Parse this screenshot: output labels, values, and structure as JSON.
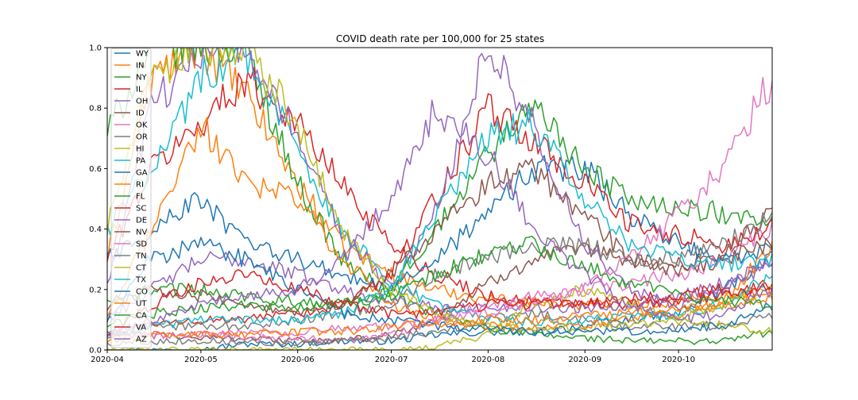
{
  "chart_data": {
    "type": "line",
    "title": "COVID death rate per 100,000 for 25 states",
    "xlabel": "",
    "ylabel": "",
    "x_range": [
      "2020-04-01",
      "2020-10-31"
    ],
    "x_ticks": [
      "2020-04",
      "2020-05",
      "2020-06",
      "2020-07",
      "2020-08",
      "2020-09",
      "2020-10"
    ],
    "x_tick_dates": [
      "2020-04-01",
      "2020-05-01",
      "2020-06-01",
      "2020-07-01",
      "2020-08-01",
      "2020-09-01",
      "2020-10-01"
    ],
    "ylim": [
      0,
      1.0
    ],
    "y_ticks": [
      "0.0",
      "0.2",
      "0.4",
      "0.6",
      "0.8",
      "1.0"
    ],
    "y_tick_values": [
      0,
      0.2,
      0.4,
      0.6,
      0.8,
      1.0
    ],
    "grid": false,
    "legend_position": "upper-left",
    "series_dates": [
      "2020-04-01",
      "2020-04-15",
      "2020-05-01",
      "2020-05-15",
      "2020-06-01",
      "2020-06-15",
      "2020-07-01",
      "2020-07-15",
      "2020-08-01",
      "2020-08-15",
      "2020-09-01",
      "2020-09-15",
      "2020-10-01",
      "2020-10-15",
      "2020-10-31"
    ],
    "series": [
      {
        "name": "WY",
        "color": "#1f77b4",
        "values": [
          0.0,
          0.0,
          0.0,
          0.02,
          0.02,
          0.03,
          0.03,
          0.05,
          0.06,
          0.06,
          0.08,
          0.1,
          0.12,
          0.2,
          0.3
        ]
      },
      {
        "name": "IN",
        "color": "#ff7f0e",
        "values": [
          0.3,
          0.9,
          1.0,
          0.85,
          0.55,
          0.35,
          0.25,
          0.2,
          0.17,
          0.16,
          0.15,
          0.15,
          0.16,
          0.18,
          0.2
        ]
      },
      {
        "name": "NY",
        "color": "#2ca02c",
        "values": [
          0.72,
          1.0,
          1.0,
          1.0,
          0.55,
          0.3,
          0.18,
          0.12,
          0.07,
          0.05,
          0.04,
          0.03,
          0.03,
          0.03,
          0.06
        ]
      },
      {
        "name": "IL",
        "color": "#d62728",
        "values": [
          0.3,
          0.6,
          0.75,
          0.9,
          0.75,
          0.55,
          0.35,
          0.25,
          0.18,
          0.16,
          0.15,
          0.15,
          0.16,
          0.18,
          0.22
        ]
      },
      {
        "name": "OH",
        "color": "#9467bd",
        "values": [
          0.1,
          0.2,
          0.3,
          0.3,
          0.25,
          0.2,
          0.16,
          0.14,
          0.14,
          0.14,
          0.14,
          0.15,
          0.18,
          0.22,
          0.28
        ]
      },
      {
        "name": "ID",
        "color": "#8c564b",
        "values": [
          0.05,
          0.05,
          0.04,
          0.04,
          0.03,
          0.03,
          0.05,
          0.1,
          0.22,
          0.3,
          0.33,
          0.3,
          0.28,
          0.32,
          0.45
        ]
      },
      {
        "name": "OK",
        "color": "#e377c2",
        "values": [
          0.05,
          0.05,
          0.05,
          0.04,
          0.04,
          0.03,
          0.05,
          0.1,
          0.15,
          0.18,
          0.2,
          0.22,
          0.25,
          0.3,
          0.4
        ]
      },
      {
        "name": "OR",
        "color": "#7f7f7f",
        "values": [
          0.02,
          0.03,
          0.03,
          0.03,
          0.02,
          0.03,
          0.04,
          0.06,
          0.1,
          0.12,
          0.1,
          0.08,
          0.08,
          0.08,
          0.12
        ]
      },
      {
        "name": "HI",
        "color": "#bcbd22",
        "values": [
          0.0,
          0.0,
          0.0,
          0.0,
          0.0,
          0.0,
          0.0,
          0.01,
          0.05,
          0.15,
          0.2,
          0.15,
          0.1,
          0.08,
          0.06
        ]
      },
      {
        "name": "PA",
        "color": "#17becf",
        "values": [
          0.4,
          0.6,
          0.9,
          1.0,
          0.65,
          0.4,
          0.22,
          0.15,
          0.1,
          0.09,
          0.1,
          0.11,
          0.12,
          0.15,
          0.25
        ]
      },
      {
        "name": "GA",
        "color": "#1f77b4",
        "values": [
          0.3,
          0.4,
          0.5,
          0.35,
          0.3,
          0.25,
          0.2,
          0.3,
          0.45,
          0.6,
          0.6,
          0.45,
          0.35,
          0.3,
          0.33
        ]
      },
      {
        "name": "RI",
        "color": "#ff7f0e",
        "values": [
          0.1,
          0.4,
          0.75,
          0.55,
          0.5,
          0.3,
          0.15,
          0.1,
          0.08,
          0.07,
          0.08,
          0.1,
          0.12,
          0.15,
          0.35
        ]
      },
      {
        "name": "FL",
        "color": "#2ca02c",
        "values": [
          0.15,
          0.2,
          0.2,
          0.18,
          0.16,
          0.15,
          0.2,
          0.4,
          0.65,
          0.8,
          0.6,
          0.5,
          0.48,
          0.45,
          0.42
        ]
      },
      {
        "name": "SC",
        "color": "#d62728",
        "values": [
          0.05,
          0.08,
          0.1,
          0.1,
          0.12,
          0.15,
          0.25,
          0.5,
          0.8,
          0.7,
          0.55,
          0.42,
          0.38,
          0.35,
          0.4
        ]
      },
      {
        "name": "DE",
        "color": "#9467bd",
        "values": [
          0.2,
          0.8,
          1.0,
          1.0,
          0.7,
          0.4,
          0.2,
          0.45,
          1.0,
          0.75,
          0.35,
          0.2,
          0.15,
          0.2,
          0.3
        ]
      },
      {
        "name": "NV",
        "color": "#8c564b",
        "values": [
          0.15,
          0.2,
          0.18,
          0.15,
          0.12,
          0.15,
          0.25,
          0.4,
          0.55,
          0.6,
          0.45,
          0.3,
          0.25,
          0.3,
          0.35
        ]
      },
      {
        "name": "SD",
        "color": "#e377c2",
        "values": [
          0.05,
          0.05,
          0.05,
          0.06,
          0.06,
          0.07,
          0.08,
          0.1,
          0.12,
          0.15,
          0.2,
          0.3,
          0.45,
          0.6,
          0.9
        ]
      },
      {
        "name": "TN",
        "color": "#7f7f7f",
        "values": [
          0.05,
          0.08,
          0.08,
          0.08,
          0.1,
          0.12,
          0.15,
          0.25,
          0.3,
          0.35,
          0.35,
          0.3,
          0.3,
          0.35,
          0.45
        ]
      },
      {
        "name": "CT",
        "color": "#bcbd22",
        "values": [
          0.4,
          0.9,
          1.0,
          1.0,
          0.75,
          0.4,
          0.2,
          0.12,
          0.08,
          0.07,
          0.07,
          0.08,
          0.1,
          0.15,
          0.2
        ]
      },
      {
        "name": "TX",
        "color": "#17becf",
        "values": [
          0.05,
          0.08,
          0.1,
          0.1,
          0.1,
          0.12,
          0.2,
          0.45,
          0.7,
          0.75,
          0.5,
          0.35,
          0.3,
          0.28,
          0.3
        ]
      },
      {
        "name": "CO",
        "color": "#1f77b4",
        "values": [
          0.1,
          0.3,
          0.35,
          0.3,
          0.2,
          0.12,
          0.1,
          0.08,
          0.07,
          0.06,
          0.06,
          0.06,
          0.07,
          0.08,
          0.15
        ]
      },
      {
        "name": "UT",
        "color": "#ff7f0e",
        "values": [
          0.03,
          0.05,
          0.05,
          0.05,
          0.06,
          0.06,
          0.08,
          0.09,
          0.1,
          0.1,
          0.11,
          0.12,
          0.13,
          0.15,
          0.18
        ]
      },
      {
        "name": "CA",
        "color": "#2ca02c",
        "values": [
          0.08,
          0.12,
          0.14,
          0.15,
          0.14,
          0.15,
          0.18,
          0.25,
          0.32,
          0.35,
          0.28,
          0.22,
          0.18,
          0.16,
          0.15
        ]
      },
      {
        "name": "VA",
        "color": "#d62728",
        "values": [
          0.05,
          0.15,
          0.22,
          0.25,
          0.2,
          0.15,
          0.12,
          0.12,
          0.15,
          0.15,
          0.15,
          0.17,
          0.18,
          0.2,
          0.2
        ]
      },
      {
        "name": "AZ",
        "color": "#9467bd",
        "values": [
          0.05,
          0.1,
          0.15,
          0.18,
          0.2,
          0.3,
          0.5,
          0.8,
          0.65,
          0.4,
          0.25,
          0.15,
          0.1,
          0.12,
          0.2
        ]
      }
    ]
  }
}
